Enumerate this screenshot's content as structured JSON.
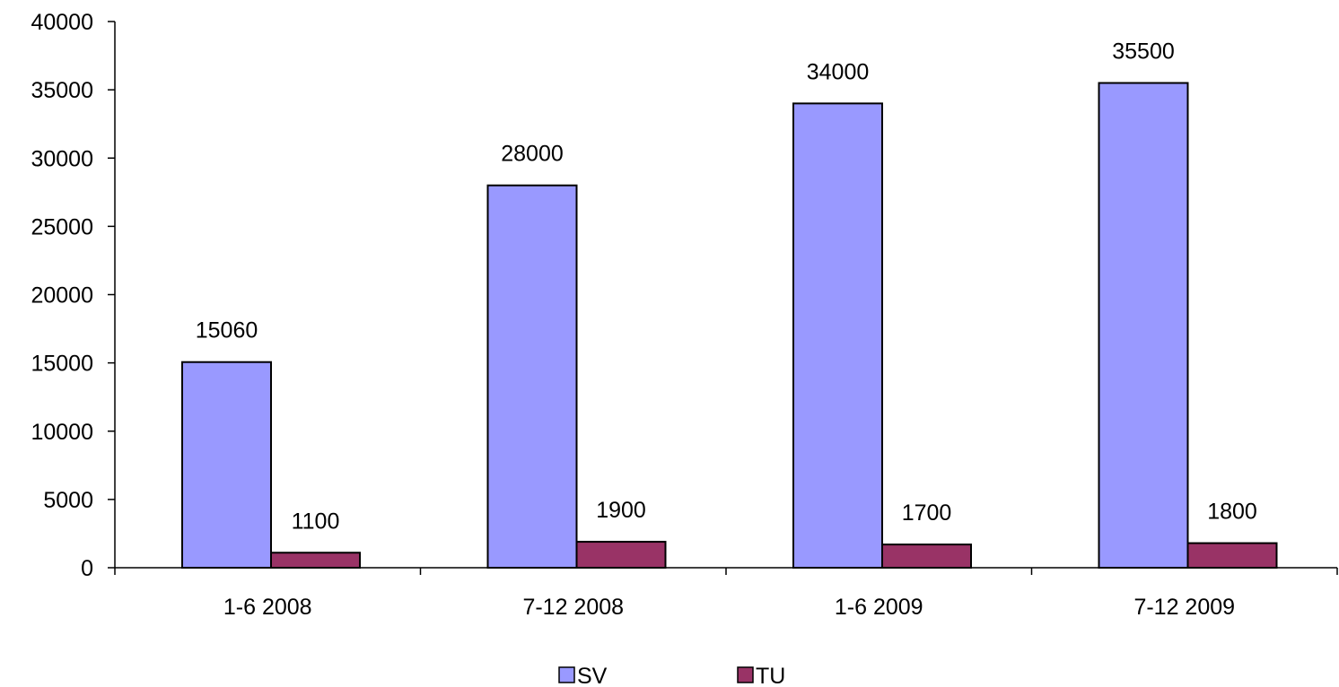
{
  "chart_data": {
    "type": "bar",
    "categories": [
      "1-6 2008",
      "7-12 2008",
      "1-6 2009",
      "7-12 2009"
    ],
    "series": [
      {
        "name": "SV",
        "values": [
          15060,
          28000,
          34000,
          35500
        ],
        "color": "#9999ff"
      },
      {
        "name": "TU",
        "values": [
          1100,
          1900,
          1700,
          1800
        ],
        "color": "#993366"
      }
    ],
    "ylim": [
      0,
      40000
    ],
    "yticks": [
      "0",
      "5000",
      "10000",
      "15000",
      "20000",
      "25000",
      "30000",
      "35000",
      "40000"
    ],
    "grid": false,
    "legend_position": "bottom",
    "title": "",
    "xlabel": "",
    "ylabel": ""
  }
}
